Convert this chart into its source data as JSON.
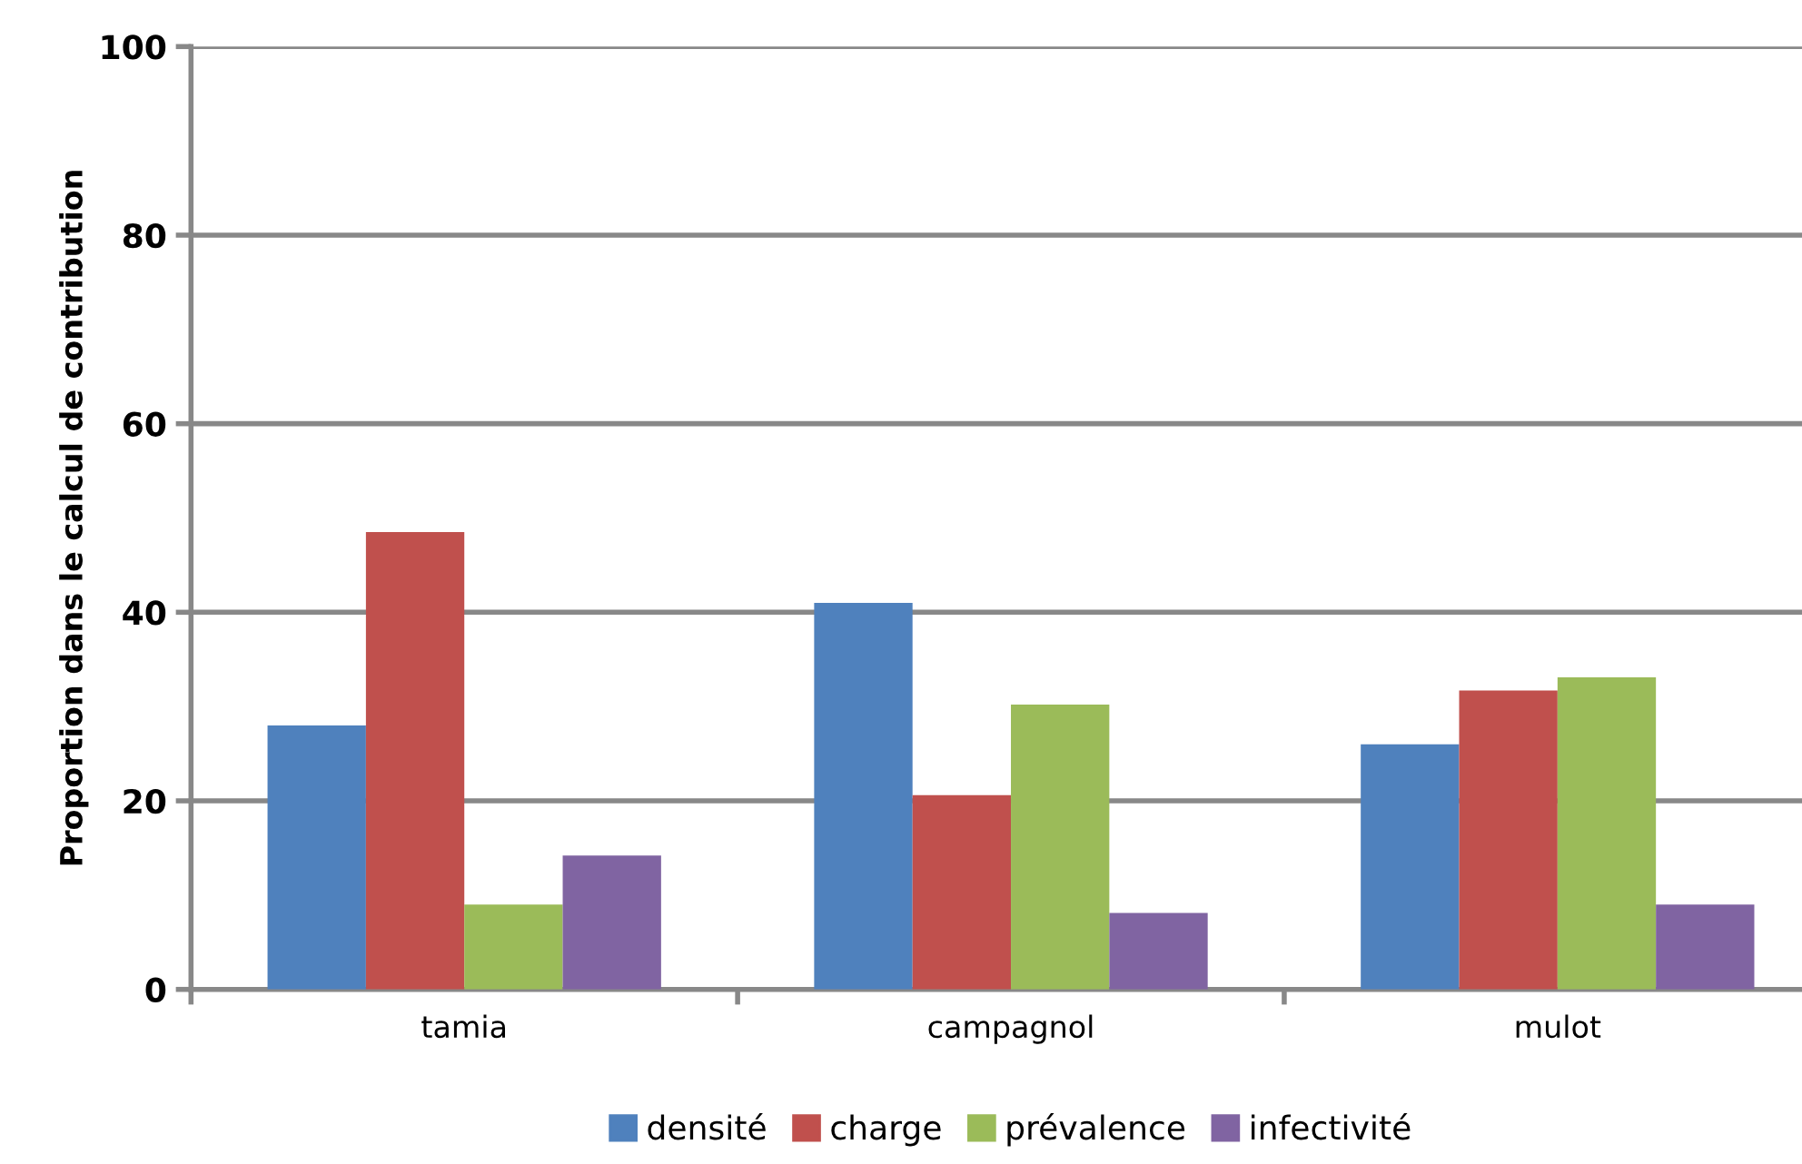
{
  "chart_data": {
    "type": "bar",
    "ylabel": "Proportion dans le calcul de contribution",
    "categories": [
      "tamia",
      "campagnol",
      "mulot"
    ],
    "series": [
      {
        "name": "densité",
        "color": "#4f81bd",
        "values": [
          28,
          41,
          26
        ]
      },
      {
        "name": "charge",
        "color": "#c0504d",
        "values": [
          48.5,
          20.6,
          31.7
        ]
      },
      {
        "name": "prévalence",
        "color": "#9bbb59",
        "values": [
          9,
          30.2,
          33.1
        ]
      },
      {
        "name": "infectivité",
        "color": "#8064a2",
        "values": [
          14.2,
          8.1,
          9
        ]
      }
    ],
    "ylim": [
      0,
      100
    ],
    "yticks": [
      0,
      20,
      40,
      60,
      80,
      100
    ],
    "grid": "y",
    "legend": "bottom"
  }
}
